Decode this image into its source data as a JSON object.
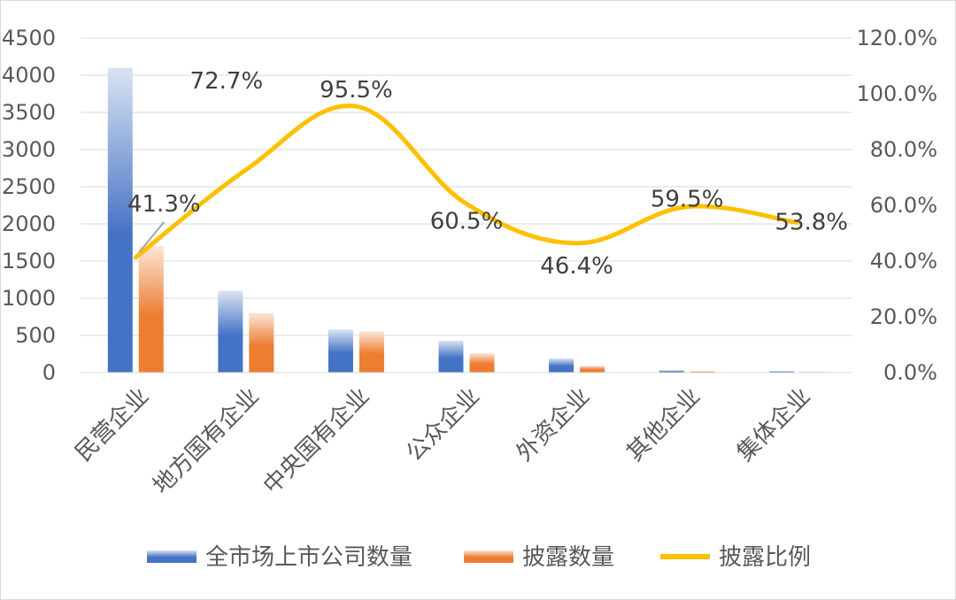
{
  "chart_data": {
    "type": "bar",
    "categories": [
      "民营企业",
      "地方国有企业",
      "中央国有企业",
      "公众企业",
      "外资企业",
      "其他企业",
      "集体企业"
    ],
    "series": [
      {
        "name": "全市场上市公司数量",
        "type": "bar",
        "axis": "left",
        "color": "#4472C4",
        "values": [
          4100,
          1100,
          580,
          430,
          190,
          30,
          20
        ]
      },
      {
        "name": "披露数量",
        "type": "bar",
        "axis": "left",
        "color": "#ED7D31",
        "values": [
          1700,
          800,
          555,
          260,
          90,
          18,
          11
        ]
      },
      {
        "name": "披露比例",
        "type": "line",
        "axis": "right",
        "color": "#FFC000",
        "values": [
          41.3,
          72.7,
          95.5,
          60.5,
          46.4,
          59.5,
          53.8
        ]
      }
    ],
    "data_labels": [
      "41.3%",
      "72.7%",
      "95.5%",
      "60.5%",
      "46.4%",
      "59.5%",
      "53.8%"
    ],
    "y_left": {
      "min": 0,
      "max": 4500,
      "step": 500,
      "ticks": [
        "0",
        "500",
        "1000",
        "1500",
        "2000",
        "2500",
        "3000",
        "3500",
        "4000",
        "4500"
      ]
    },
    "y_right": {
      "min": 0,
      "max": 120,
      "step": 20,
      "ticks": [
        "0.0%",
        "20.0%",
        "40.0%",
        "60.0%",
        "80.0%",
        "100.0%",
        "120.0%"
      ]
    },
    "grid": true,
    "legend_position": "bottom"
  }
}
